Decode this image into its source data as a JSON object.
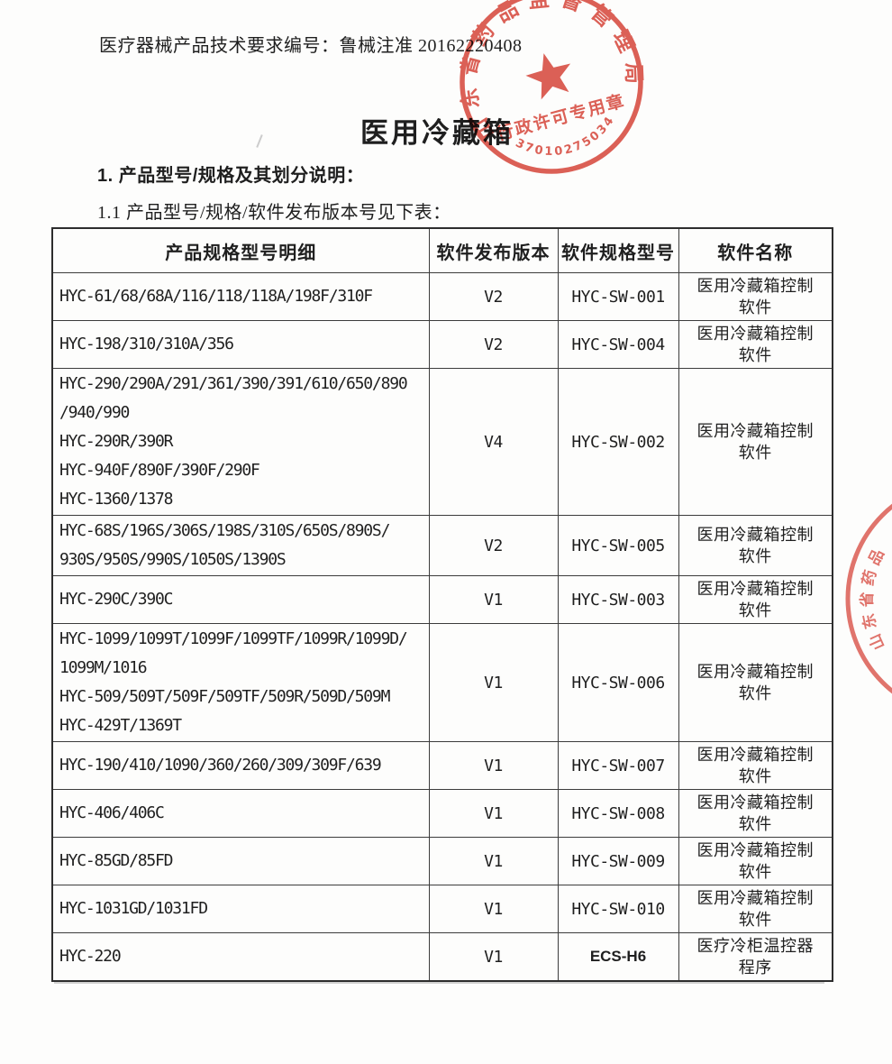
{
  "page": {
    "doc_number_line": "医疗器械产品技术要求编号：鲁械注准 20162220408",
    "title": "医用冷藏箱",
    "section_1": "1. 产品型号/规格及其划分说明：",
    "section_1_1": "1.1 产品型号/规格/软件发布版本号见下表："
  },
  "stamp": {
    "org_arc_text": "山东省药品监督管理局",
    "license_text": "行政许可专用章",
    "serial_number": "3701027503440",
    "color": "#d8473c"
  },
  "side_stamp": {
    "partial_arc_text": "山东省药品",
    "color": "#d8473c"
  },
  "table": {
    "headers": [
      "产品规格型号明细",
      "软件发布版本",
      "软件规格型号",
      "软件名称"
    ],
    "rows": [
      {
        "model_lines": [
          "HYC-61/68/68A/116/118/118A/198F/310F"
        ],
        "release_version": "V2",
        "software_model": "HYC-SW-001",
        "software_model_font": "mono",
        "software_name_lines": [
          "医用冷藏箱控制",
          "软件"
        ]
      },
      {
        "model_lines": [
          "HYC-198/310/310A/356"
        ],
        "release_version": "V2",
        "software_model": "HYC-SW-004",
        "software_model_font": "mono",
        "software_name_lines": [
          "医用冷藏箱控制",
          "软件"
        ]
      },
      {
        "model_lines": [
          "HYC-290/290A/291/361/390/391/610/650/890",
          "/940/990",
          "HYC-290R/390R",
          "HYC-940F/890F/390F/290F",
          "HYC-1360/1378"
        ],
        "release_version": "V4",
        "software_model": "HYC-SW-002",
        "software_model_font": "mono",
        "software_name_lines": [
          "医用冷藏箱控制",
          "软件"
        ]
      },
      {
        "model_lines": [
          "HYC-68S/196S/306S/198S/310S/650S/890S/",
          "930S/950S/990S/1050S/1390S"
        ],
        "release_version": "V2",
        "software_model": "HYC-SW-005",
        "software_model_font": "mono",
        "software_name_lines": [
          "医用冷藏箱控制",
          "软件"
        ]
      },
      {
        "model_lines": [
          "HYC-290C/390C"
        ],
        "release_version": "V1",
        "software_model": "HYC-SW-003",
        "software_model_font": "mono",
        "software_name_lines": [
          "医用冷藏箱控制",
          "软件"
        ]
      },
      {
        "model_lines": [
          "HYC-1099/1099T/1099F/1099TF/1099R/1099D/",
          "1099M/1016",
          "HYC-509/509T/509F/509TF/509R/509D/509M",
          "HYC-429T/1369T"
        ],
        "release_version": "V1",
        "software_model": "HYC-SW-006",
        "software_model_font": "mono",
        "software_name_lines": [
          "医用冷藏箱控制",
          "软件"
        ]
      },
      {
        "model_lines": [
          "HYC-190/410/1090/360/260/309/309F/639"
        ],
        "release_version": "V1",
        "software_model": "HYC-SW-007",
        "software_model_font": "mono",
        "software_name_lines": [
          "医用冷藏箱控制",
          "软件"
        ]
      },
      {
        "model_lines": [
          "HYC-406/406C"
        ],
        "release_version": "V1",
        "software_model": "HYC-SW-008",
        "software_model_font": "mono",
        "software_name_lines": [
          "医用冷藏箱控制",
          "软件"
        ]
      },
      {
        "model_lines": [
          "HYC-85GD/85FD"
        ],
        "release_version": "V1",
        "software_model": "HYC-SW-009",
        "software_model_font": "mono",
        "software_name_lines": [
          "医用冷藏箱控制",
          "软件"
        ]
      },
      {
        "model_lines": [
          "HYC-1031GD/1031FD"
        ],
        "release_version": "V1",
        "software_model": "HYC-SW-010",
        "software_model_font": "mono",
        "software_name_lines": [
          "医用冷藏箱控制",
          "软件"
        ]
      },
      {
        "model_lines": [
          "HYC-220"
        ],
        "release_version": "V1",
        "software_model": "ECS-H6",
        "software_model_font": "sans",
        "software_name_lines": [
          "医疗冷柜温控器",
          "程序"
        ]
      }
    ]
  }
}
